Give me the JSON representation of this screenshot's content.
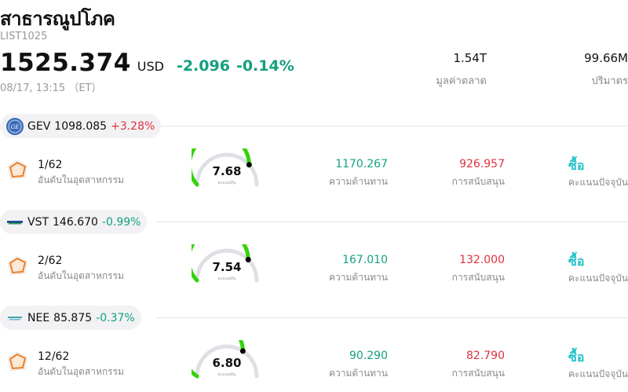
{
  "header": {
    "title": "สาธารณูปโภค",
    "symbol": "LIST1025",
    "price": "1525.374",
    "currency": "USD",
    "change": "-2.096",
    "change_pct": "-0.14%",
    "timestamp": "08/17, 13:15 （ET）",
    "market_cap_value": "1.54T",
    "market_cap_label": "มูลค่าตลาด",
    "volume_value": "99.66M",
    "volume_label": "ปริมาตร"
  },
  "colors": {
    "up": "#e0303c",
    "down": "#13a07f",
    "buy": "#21c1c9",
    "gauge_fill": "#33d30a",
    "gauge_track": "#dfe0e6",
    "resistance": "#13a07f",
    "support": "#e0303c"
  },
  "stocks": [
    {
      "ticker": "GEV",
      "price": "1098.085",
      "change_pct": "+3.28%",
      "trend": "up",
      "logo_icon": "ge-logo-icon",
      "rank": "1/62",
      "rank_label": "อันดับในอุตสาหกรรม",
      "score": "7.68",
      "score_value": 7.68,
      "score_label": "คะแนนหุ้น",
      "resistance": "1170.267",
      "resistance_label": "ความต้านทาน",
      "support": "926.957",
      "support_label": "การสนับสนุน",
      "rating": "ซื้อ",
      "rating_label": "คะแนนปัจจุบัน"
    },
    {
      "ticker": "VST",
      "price": "146.670",
      "change_pct": "-0.99%",
      "trend": "down",
      "logo_icon": "vistra-logo-icon",
      "rank": "2/62",
      "rank_label": "อันดับในอุตสาหกรรม",
      "score": "7.54",
      "score_value": 7.54,
      "score_label": "คะแนนหุ้น",
      "resistance": "167.010",
      "resistance_label": "ความต้านทาน",
      "support": "132.000",
      "support_label": "การสนับสนุน",
      "rating": "ซื้อ",
      "rating_label": "คะแนนปัจจุบัน"
    },
    {
      "ticker": "NEE",
      "price": "85.875",
      "change_pct": "-0.37%",
      "trend": "down",
      "logo_icon": "nextera-logo-icon",
      "rank": "12/62",
      "rank_label": "อันดับในอุตสาหกรรม",
      "score": "6.80",
      "score_value": 6.8,
      "score_label": "คะแนนหุ้น",
      "resistance": "90.290",
      "resistance_label": "ความต้านทาน",
      "support": "82.790",
      "support_label": "การสนับสนุน",
      "rating": "ซื้อ",
      "rating_label": "คะแนนปัจจุบัน"
    }
  ]
}
